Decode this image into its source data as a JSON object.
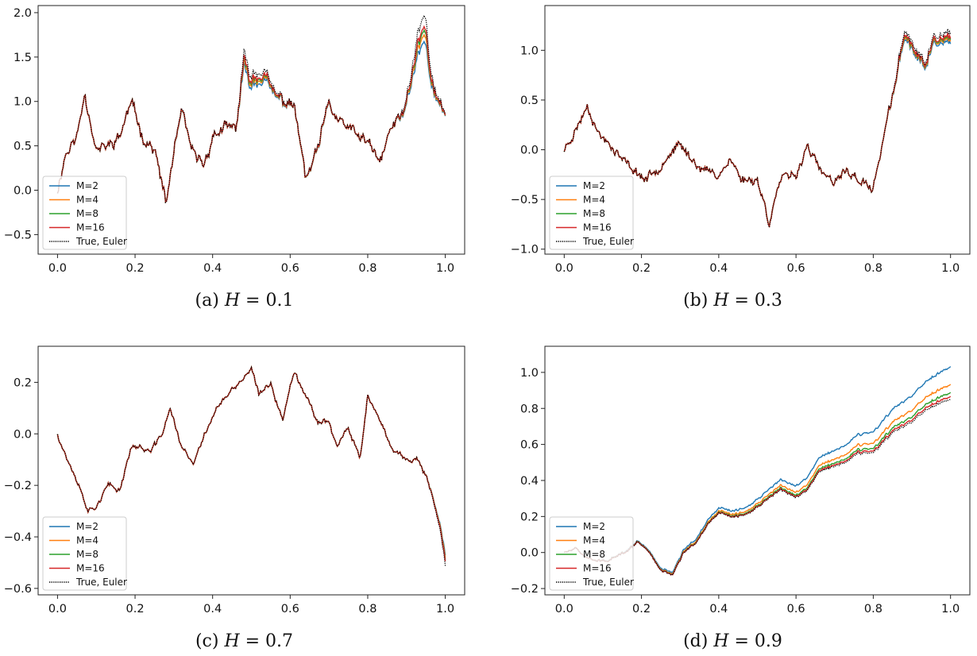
{
  "chart_data": [
    {
      "type": "line",
      "caption_label": "(a)",
      "caption_var": "H",
      "caption_value": "= 0.1",
      "xlim": [
        -0.05,
        1.05
      ],
      "ylim": [
        -0.72,
        2.08
      ],
      "xticks": [
        "0.0",
        "0.2",
        "0.4",
        "0.6",
        "0.8",
        "1.0"
      ],
      "yticks": [
        "−0.5",
        "0.0",
        "0.5",
        "1.0",
        "1.5",
        "2.0"
      ],
      "ytick_values": [
        -0.5,
        0.0,
        0.5,
        1.0,
        1.5,
        2.0
      ],
      "legend_entries": [
        "M=2",
        "M=4",
        "M=8",
        "M=16",
        "True, Euler"
      ],
      "legend_position": "lower-left",
      "series_colors": [
        "#1f77b4",
        "#ff7f0e",
        "#2ca02c",
        "#d62728",
        "#000000"
      ],
      "series_styles": [
        "solid",
        "solid",
        "solid",
        "solid",
        "dotted"
      ],
      "x": [
        0.0,
        0.02,
        0.05,
        0.07,
        0.1,
        0.13,
        0.16,
        0.19,
        0.22,
        0.25,
        0.28,
        0.3,
        0.32,
        0.35,
        0.38,
        0.4,
        0.43,
        0.46,
        0.48,
        0.5,
        0.53,
        0.56,
        0.59,
        0.61,
        0.64,
        0.67,
        0.7,
        0.72,
        0.75,
        0.78,
        0.8,
        0.83,
        0.86,
        0.89,
        0.91,
        0.93,
        0.95,
        0.97,
        1.0
      ],
      "base": [
        0.0,
        0.4,
        0.6,
        1.1,
        0.45,
        0.5,
        0.6,
        1.0,
        0.6,
        0.45,
        -0.15,
        0.4,
        0.85,
        0.4,
        0.3,
        0.6,
        0.7,
        0.7,
        1.2,
        1.05,
        1.15,
        1.0,
        0.95,
        0.95,
        0.1,
        0.4,
        0.95,
        0.8,
        0.7,
        0.6,
        0.55,
        0.3,
        0.7,
        0.8,
        1.05,
        1.3,
        1.35,
        1.0,
        0.8
      ],
      "mscale": [
        1.0,
        1.0,
        1.0,
        1.0,
        1.0,
        1.0,
        1.0,
        1.0,
        1.0,
        1.0,
        1.15,
        1.1,
        1.05,
        1.0,
        1.0,
        1.0,
        1.0,
        1.0,
        1.25,
        1.25,
        1.2,
        1.1,
        1.05,
        1.0,
        1.15,
        1.1,
        1.05,
        1.0,
        1.0,
        1.0,
        1.0,
        1.0,
        1.0,
        1.1,
        1.2,
        1.4,
        1.45,
        1.15,
        1.05
      ],
      "noise_amp": 0.11,
      "seed": 11
    },
    {
      "type": "line",
      "caption_label": "(b)",
      "caption_var": "H",
      "caption_value": "= 0.3",
      "xlim": [
        -0.05,
        1.05
      ],
      "ylim": [
        -1.05,
        1.45
      ],
      "xticks": [
        "0.0",
        "0.2",
        "0.4",
        "0.6",
        "0.8",
        "1.0"
      ],
      "yticks": [
        "−1.0",
        "−0.5",
        "0.0",
        "0.5",
        "1.0"
      ],
      "ytick_values": [
        -1.0,
        -0.5,
        0.0,
        0.5,
        1.0
      ],
      "legend_entries": [
        "M=2",
        "M=4",
        "M=8",
        "M=16",
        "True, Euler"
      ],
      "legend_position": "lower-left",
      "series_colors": [
        "#1f77b4",
        "#ff7f0e",
        "#2ca02c",
        "#d62728",
        "#000000"
      ],
      "series_styles": [
        "solid",
        "solid",
        "solid",
        "solid",
        "dotted"
      ],
      "x": [
        0.0,
        0.03,
        0.06,
        0.09,
        0.12,
        0.15,
        0.18,
        0.21,
        0.24,
        0.27,
        0.3,
        0.33,
        0.36,
        0.4,
        0.43,
        0.46,
        0.5,
        0.53,
        0.56,
        0.6,
        0.63,
        0.66,
        0.7,
        0.73,
        0.76,
        0.8,
        0.83,
        0.85,
        0.88,
        0.9,
        0.93,
        0.96,
        1.0
      ],
      "base": [
        0.0,
        0.2,
        0.45,
        0.15,
        0.05,
        -0.1,
        -0.2,
        -0.3,
        -0.2,
        -0.05,
        0.05,
        -0.1,
        -0.2,
        -0.25,
        -0.1,
        -0.3,
        -0.3,
        -0.7,
        -0.3,
        -0.25,
        0.05,
        -0.2,
        -0.35,
        -0.2,
        -0.3,
        -0.4,
        0.2,
        0.5,
        1.05,
        0.95,
        0.75,
        1.0,
        0.95
      ],
      "mscale": [
        1.0,
        1.0,
        1.0,
        1.0,
        1.0,
        1.0,
        1.0,
        1.0,
        1.0,
        1.0,
        1.0,
        1.0,
        1.0,
        1.0,
        1.0,
        1.0,
        1.0,
        1.05,
        1.0,
        1.0,
        1.0,
        1.0,
        1.0,
        1.0,
        1.0,
        1.0,
        1.0,
        1.1,
        1.15,
        1.15,
        1.15,
        1.15,
        1.2
      ],
      "noise_amp": 0.08,
      "seed": 23
    },
    {
      "type": "line",
      "caption_label": "(c)",
      "caption_var": "H",
      "caption_value": "= 0.7",
      "xlim": [
        -0.05,
        1.05
      ],
      "ylim": [
        -0.625,
        0.34
      ],
      "xticks": [
        "0.0",
        "0.2",
        "0.4",
        "0.6",
        "0.8",
        "1.0"
      ],
      "yticks": [
        "−0.6",
        "−0.4",
        "−0.2",
        "0.0",
        "0.2"
      ],
      "ytick_values": [
        -0.6,
        -0.4,
        -0.2,
        0.0,
        0.2
      ],
      "legend_entries": [
        "M=2",
        "M=4",
        "M=8",
        "M=16",
        "True, Euler"
      ],
      "legend_position": "lower-left",
      "series_colors": [
        "#1f77b4",
        "#ff7f0e",
        "#2ca02c",
        "#d62728",
        "#000000"
      ],
      "series_styles": [
        "solid",
        "solid",
        "solid",
        "solid",
        "dotted"
      ],
      "x": [
        0.0,
        0.02,
        0.05,
        0.08,
        0.1,
        0.13,
        0.16,
        0.19,
        0.21,
        0.24,
        0.27,
        0.29,
        0.32,
        0.35,
        0.38,
        0.41,
        0.44,
        0.47,
        0.5,
        0.52,
        0.55,
        0.58,
        0.61,
        0.64,
        0.67,
        0.7,
        0.72,
        0.75,
        0.78,
        0.8,
        0.83,
        0.86,
        0.9,
        0.93,
        0.96,
        0.98,
        1.0
      ],
      "base": [
        0.0,
        -0.08,
        -0.18,
        -0.3,
        -0.28,
        -0.2,
        -0.22,
        -0.05,
        -0.05,
        -0.07,
        0.0,
        0.1,
        -0.05,
        -0.12,
        0.0,
        0.1,
        0.15,
        0.2,
        0.25,
        0.15,
        0.2,
        0.05,
        0.25,
        0.15,
        0.05,
        0.05,
        -0.05,
        0.02,
        -0.1,
        0.15,
        0.05,
        -0.05,
        -0.1,
        -0.1,
        -0.2,
        -0.3,
        -0.42
      ],
      "mscale": [
        1.0,
        1.0,
        1.0,
        1.0,
        1.0,
        1.0,
        1.0,
        1.0,
        1.0,
        1.0,
        1.0,
        1.0,
        1.0,
        1.0,
        1.0,
        1.0,
        1.0,
        1.0,
        1.0,
        1.0,
        1.0,
        1.0,
        1.0,
        1.0,
        1.0,
        1.0,
        1.0,
        1.0,
        1.0,
        1.0,
        1.0,
        1.0,
        1.0,
        1.0,
        1.05,
        1.1,
        1.2
      ],
      "noise_amp": 0.018,
      "seed": 37
    },
    {
      "type": "line",
      "caption_label": "(d)",
      "caption_var": "H",
      "caption_value": "= 0.9",
      "xlim": [
        -0.05,
        1.05
      ],
      "ylim": [
        -0.235,
        1.145
      ],
      "xticks": [
        "0.0",
        "0.2",
        "0.4",
        "0.6",
        "0.8",
        "1.0"
      ],
      "yticks": [
        "−0.2",
        "0.0",
        "0.2",
        "0.4",
        "0.6",
        "0.8",
        "1.0"
      ],
      "ytick_values": [
        -0.2,
        0.0,
        0.2,
        0.4,
        0.6,
        0.8,
        1.0
      ],
      "legend_entries": [
        "M=2",
        "M=4",
        "M=8",
        "M=16",
        "True, Euler"
      ],
      "legend_position": "lower-left",
      "series_colors": [
        "#1f77b4",
        "#ff7f0e",
        "#2ca02c",
        "#d62728",
        "#000000"
      ],
      "series_styles": [
        "solid",
        "solid",
        "solid",
        "solid",
        "dotted"
      ],
      "x": [
        0.0,
        0.03,
        0.06,
        0.1,
        0.13,
        0.16,
        0.19,
        0.22,
        0.25,
        0.28,
        0.31,
        0.34,
        0.37,
        0.4,
        0.43,
        0.46,
        0.5,
        0.53,
        0.56,
        0.6,
        0.63,
        0.66,
        0.7,
        0.73,
        0.76,
        0.8,
        0.83,
        0.86,
        0.9,
        0.93,
        0.96,
        1.0
      ],
      "base": [
        0.0,
        0.02,
        -0.03,
        -0.05,
        -0.03,
        0.0,
        0.06,
        0.0,
        -0.1,
        -0.12,
        0.0,
        0.05,
        0.15,
        0.22,
        0.2,
        0.2,
        0.25,
        0.3,
        0.35,
        0.3,
        0.35,
        0.45,
        0.48,
        0.5,
        0.55,
        0.55,
        0.62,
        0.68,
        0.72,
        0.78,
        0.82,
        0.85
      ],
      "mscale": [
        1.0,
        1.0,
        1.0,
        1.0,
        1.0,
        1.0,
        1.0,
        1.0,
        1.0,
        1.0,
        1.0,
        1.0,
        1.0,
        1.0,
        1.0,
        1.0,
        1.0,
        1.0,
        1.0,
        1.0,
        1.0,
        1.0,
        1.0,
        1.0,
        1.0,
        1.0,
        1.0,
        1.0,
        1.0,
        1.0,
        1.0,
        1.0
      ],
      "drift_m2": 0.18,
      "noise_amp": 0.012,
      "seed": 51
    }
  ]
}
